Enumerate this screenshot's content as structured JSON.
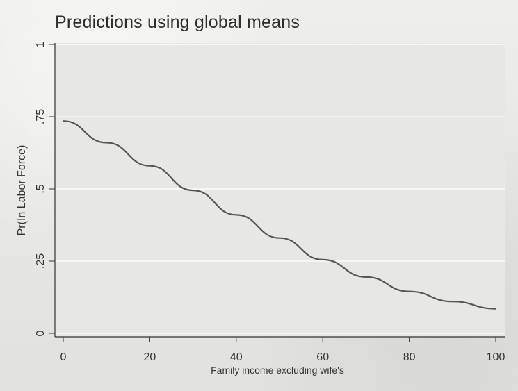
{
  "chart_data": {
    "type": "line",
    "title": "Predictions using global means",
    "xlabel": "Family income excluding wife's",
    "ylabel": "Pr(In Labor Force)",
    "xlim": [
      0,
      100
    ],
    "ylim": [
      0,
      1
    ],
    "xticks": [
      0,
      20,
      40,
      60,
      80,
      100
    ],
    "yticks": [
      0,
      0.25,
      0.5,
      0.75,
      1
    ],
    "xtick_labels": [
      "0",
      "20",
      "40",
      "60",
      "80",
      "100"
    ],
    "ytick_labels": [
      "0",
      ".25",
      ".5",
      ".75",
      "1"
    ],
    "grid": true,
    "series": [
      {
        "x": [
          0,
          10,
          20,
          30,
          40,
          50,
          60,
          70,
          80,
          90,
          100
        ],
        "y": [
          0.735,
          0.66,
          0.58,
          0.495,
          0.41,
          0.33,
          0.255,
          0.195,
          0.145,
          0.11,
          0.085
        ]
      }
    ],
    "colors": {
      "line": "#555555",
      "grid": "#f7f7f4",
      "axis": "#333333"
    }
  }
}
